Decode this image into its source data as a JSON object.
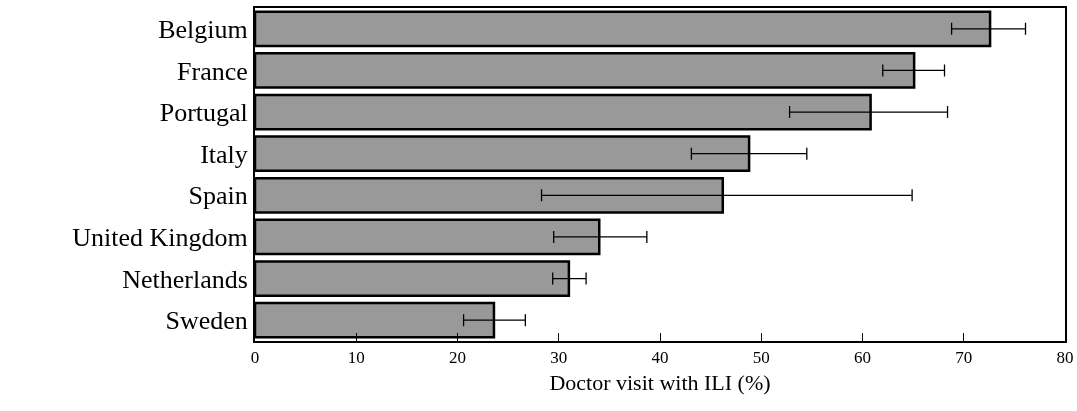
{
  "chart_data": {
    "type": "bar",
    "orientation": "horizontal",
    "xlabel": "Doctor visit with ILI (%)",
    "categories": [
      "Belgium",
      "France",
      "Portugal",
      "Italy",
      "Spain",
      "United Kingdom",
      "Netherlands",
      "Sweden"
    ],
    "values": [
      72.6,
      65.1,
      60.8,
      48.8,
      46.2,
      34.0,
      31.0,
      23.6
    ],
    "errors": [
      [
        68.8,
        76.1
      ],
      [
        62.0,
        68.1
      ],
      [
        52.8,
        68.4
      ],
      [
        43.1,
        54.5
      ],
      [
        28.3,
        64.9
      ],
      [
        29.5,
        38.7
      ],
      [
        29.4,
        32.7
      ],
      [
        20.6,
        26.7
      ]
    ],
    "color": "#999999",
    "xlim": [
      0,
      80
    ],
    "xticks": [
      0,
      10,
      20,
      30,
      40,
      50,
      60,
      70,
      80
    ],
    "grid": false,
    "legend": false
  }
}
